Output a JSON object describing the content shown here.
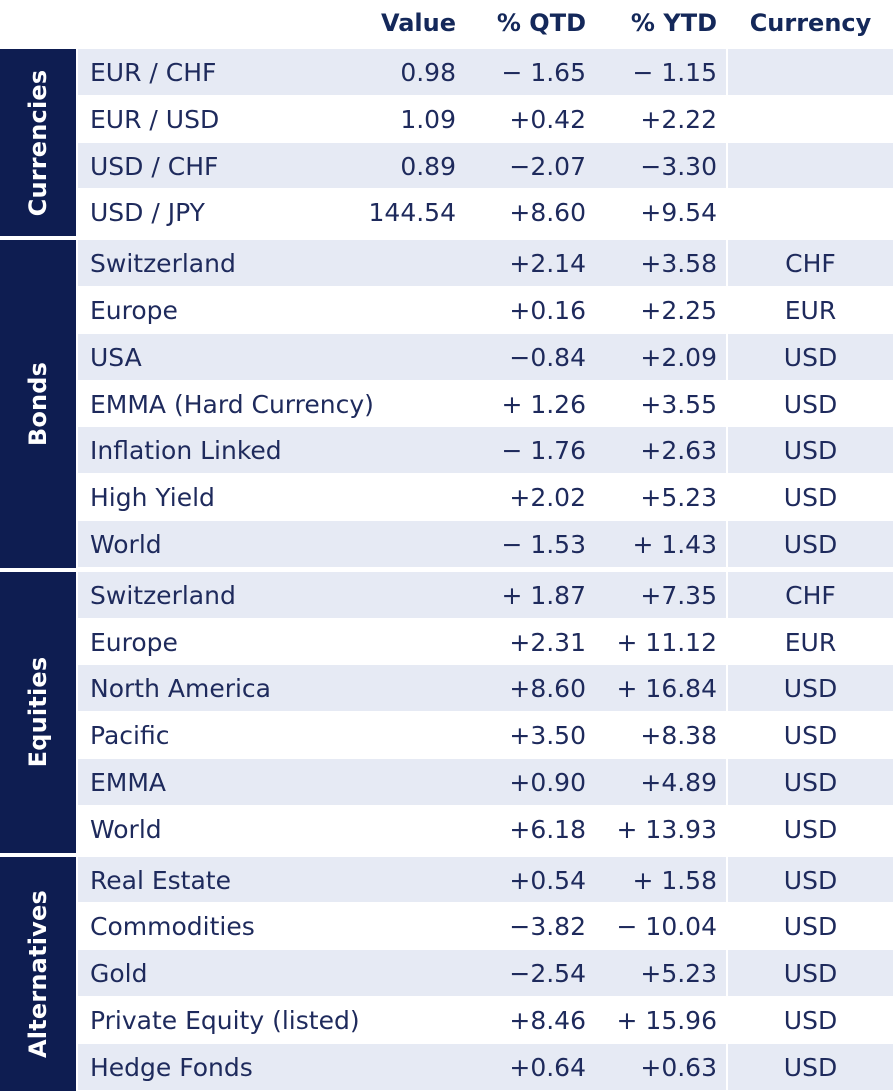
{
  "header": {
    "value": "Value",
    "qtd": "% QTD",
    "ytd": "% YTD",
    "currency": "Currency"
  },
  "groups": [
    {
      "label": "Currencies",
      "rows": [
        {
          "name": "EUR / CHF",
          "value": "0.98",
          "qtd": "− 1.65",
          "ytd": "− 1.15",
          "currency": ""
        },
        {
          "name": "EUR / USD",
          "value": "1.09",
          "qtd": "+0.42",
          "ytd": "+2.22",
          "currency": ""
        },
        {
          "name": "USD / CHF",
          "value": "0.89",
          "qtd": "−2.07",
          "ytd": "−3.30",
          "currency": ""
        },
        {
          "name": "USD / JPY",
          "value": "144.54",
          "qtd": "+8.60",
          "ytd": "+9.54",
          "currency": ""
        }
      ]
    },
    {
      "label": "Bonds",
      "rows": [
        {
          "name": "Switzerland",
          "value": "",
          "qtd": "+2.14",
          "ytd": "+3.58",
          "currency": "CHF"
        },
        {
          "name": "Europe",
          "value": "",
          "qtd": "+0.16",
          "ytd": "+2.25",
          "currency": "EUR"
        },
        {
          "name": "USA",
          "value": "",
          "qtd": "−0.84",
          "ytd": "+2.09",
          "currency": "USD"
        },
        {
          "name": "EMMA (Hard Currency)",
          "value": "",
          "qtd": "+ 1.26",
          "ytd": "+3.55",
          "currency": "USD"
        },
        {
          "name": "Inflation Linked",
          "value": "",
          "qtd": "− 1.76",
          "ytd": "+2.63",
          "currency": "USD"
        },
        {
          "name": "High Yield",
          "value": "",
          "qtd": "+2.02",
          "ytd": "+5.23",
          "currency": "USD"
        },
        {
          "name": "World",
          "value": "",
          "qtd": "− 1.53",
          "ytd": "+ 1.43",
          "currency": "USD"
        }
      ]
    },
    {
      "label": "Equities",
      "rows": [
        {
          "name": "Switzerland",
          "value": "",
          "qtd": "+ 1.87",
          "ytd": "+7.35",
          "currency": "CHF"
        },
        {
          "name": "Europe",
          "value": "",
          "qtd": "+2.31",
          "ytd": "+ 11.12",
          "currency": "EUR"
        },
        {
          "name": "North America",
          "value": "",
          "qtd": "+8.60",
          "ytd": "+ 16.84",
          "currency": "USD"
        },
        {
          "name": "Pacific",
          "value": "",
          "qtd": "+3.50",
          "ytd": "+8.38",
          "currency": "USD"
        },
        {
          "name": "EMMA",
          "value": "",
          "qtd": "+0.90",
          "ytd": "+4.89",
          "currency": "USD"
        },
        {
          "name": "World",
          "value": "",
          "qtd": "+6.18",
          "ytd": "+ 13.93",
          "currency": "USD"
        }
      ]
    },
    {
      "label": "Alternatives",
      "rows": [
        {
          "name": "Real Estate",
          "value": "",
          "qtd": "+0.54",
          "ytd": "+ 1.58",
          "currency": "USD"
        },
        {
          "name": "Commodities",
          "value": "",
          "qtd": "−3.82",
          "ytd": "− 10.04",
          "currency": "USD"
        },
        {
          "name": "Gold",
          "value": "",
          "qtd": "−2.54",
          "ytd": "+5.23",
          "currency": "USD"
        },
        {
          "name": "Private Equity (listed)",
          "value": "",
          "qtd": "+8.46",
          "ytd": "+ 15.96",
          "currency": "USD"
        },
        {
          "name": "Hedge Fonds",
          "value": "",
          "qtd": "+0.64",
          "ytd": "+0.63",
          "currency": "USD"
        }
      ]
    }
  ]
}
